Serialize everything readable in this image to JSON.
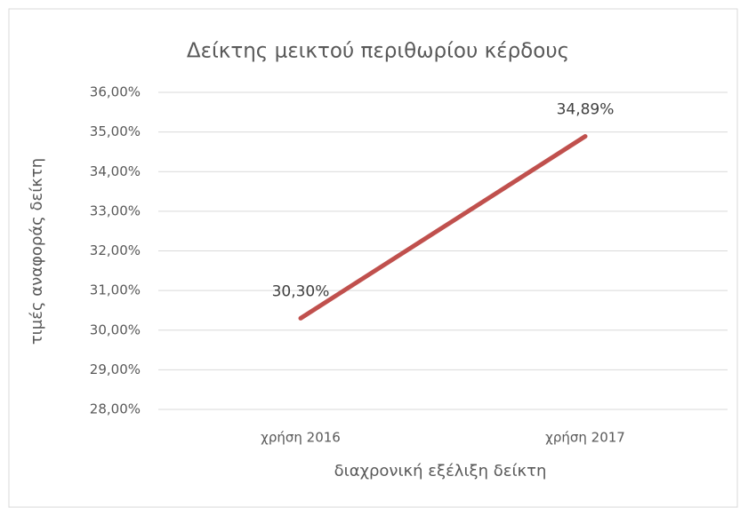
{
  "chart_data": {
    "type": "line",
    "title": "Δείκτης μεικτού περιθωρίου κέρδους",
    "x_label": "διαχρονική εξέλιξη δείκτη",
    "y_label": "τιμές αναφοράς δείκτη",
    "categories": [
      "χρήση 2016",
      "χρήση 2017"
    ],
    "series": [
      {
        "name": "Δείκτης μεικτού περιθωρίου κέρδους",
        "color": "#c0504d",
        "values": [
          30.3,
          34.89
        ],
        "value_labels": [
          "30,30%",
          "34,89%"
        ]
      }
    ],
    "ylim": [
      28,
      36
    ],
    "yticks": [
      {
        "value": 28,
        "label": "28,00%"
      },
      {
        "value": 29,
        "label": "29,00%"
      },
      {
        "value": 30,
        "label": "30,00%"
      },
      {
        "value": 31,
        "label": "31,00%"
      },
      {
        "value": 32,
        "label": "32,00%"
      },
      {
        "value": 33,
        "label": "33,00%"
      },
      {
        "value": 34,
        "label": "34,00%"
      },
      {
        "value": 35,
        "label": "35,00%"
      },
      {
        "value": 36,
        "label": "36,00%"
      }
    ],
    "grid": true
  }
}
